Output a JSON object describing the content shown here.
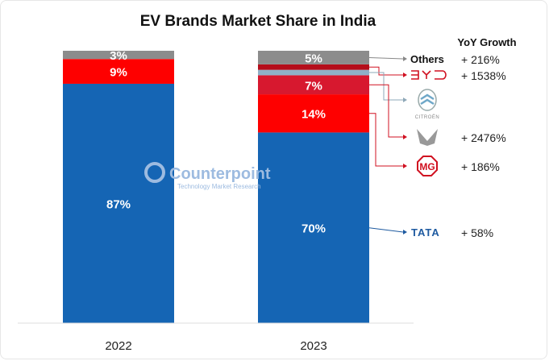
{
  "chart_data": {
    "type": "bar",
    "stacked": true,
    "title": "EV Brands Market Share in India",
    "categories": [
      "2022",
      "2023"
    ],
    "series": [
      {
        "name": "TATA",
        "values": [
          87,
          70
        ],
        "labels": [
          "87%",
          "70%"
        ],
        "color": "#1565b4"
      },
      {
        "name": "MG",
        "values": [
          9,
          14
        ],
        "labels": [
          "9%",
          "14%"
        ],
        "color": "#fe0000"
      },
      {
        "name": "Mahindra",
        "values": [
          0,
          7
        ],
        "labels": [
          "",
          "7%"
        ],
        "color": "#d7182f"
      },
      {
        "name": "Citroen",
        "values": [
          0,
          2
        ],
        "labels": [
          "",
          ""
        ],
        "color": "#8fb0c8"
      },
      {
        "name": "BYD",
        "values": [
          0,
          2
        ],
        "labels": [
          "",
          ""
        ],
        "color": "#b50d1a"
      },
      {
        "name": "Others",
        "values": [
          3,
          5
        ],
        "labels": [
          "3%",
          "5%"
        ],
        "color": "#8c8c8c"
      }
    ],
    "ylim": [
      0,
      100
    ],
    "grid": false,
    "legend": {
      "header": "YoY Growth",
      "entries": [
        {
          "brand": "Others",
          "logo": "text",
          "growth": "+ 216%"
        },
        {
          "brand": "BYD",
          "logo": "byd-logo",
          "growth": "+ 1538%"
        },
        {
          "brand": "Citroen",
          "logo": "citroen-logo",
          "logo_text": "CITROËN",
          "growth": ""
        },
        {
          "brand": "Mahindra",
          "logo": "mahindra-logo",
          "growth": "+ 2476%"
        },
        {
          "brand": "MG",
          "logo": "mg-logo",
          "logo_text": "MG",
          "growth": "+ 186%"
        },
        {
          "brand": "TATA",
          "logo": "tata-logo",
          "logo_text": "TATA",
          "growth": "+ 58%"
        }
      ]
    },
    "watermark": {
      "name": "Counterpoint",
      "tagline": "Technology Market Research"
    }
  }
}
